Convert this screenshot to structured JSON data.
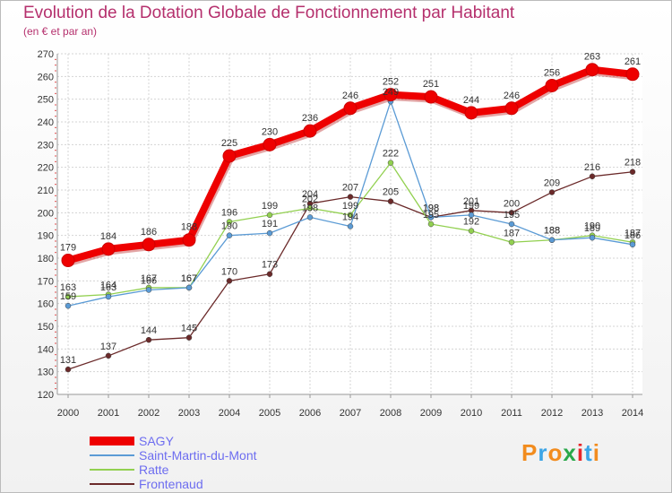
{
  "title": "Evolution de la Dotation Globale de Fonctionnement par Habitant",
  "subtitle": "(en € et par an)",
  "logo": {
    "text": "Proxiti",
    "colors": [
      "#f28c1e",
      "#3ca5e6",
      "#f28c1e",
      "#2aa84a",
      "#e8262a",
      "#3ca5e6",
      "#f28c1e"
    ]
  },
  "chart_data": {
    "type": "line",
    "title": "Evolution de la Dotation Globale de Fonctionnement par Habitant",
    "subtitle": "(en € et par an)",
    "x": [
      "2000",
      "2001",
      "2002",
      "2003",
      "2004",
      "2005",
      "2006",
      "2007",
      "2008",
      "2009",
      "2010",
      "2011",
      "2012",
      "2013",
      "2014"
    ],
    "ylim": [
      120,
      270
    ],
    "yticks": [
      120,
      130,
      140,
      150,
      160,
      170,
      180,
      190,
      200,
      210,
      220,
      230,
      240,
      250,
      260,
      270
    ],
    "grid": true,
    "series": [
      {
        "name": "SAGY",
        "color": "#ee0000",
        "values": [
          179,
          184,
          186,
          188,
          225,
          230,
          236,
          246,
          252,
          251,
          244,
          246,
          256,
          263,
          261
        ]
      },
      {
        "name": "Saint-Martin-du-Mont",
        "color": "#5b9bd5",
        "values": [
          159,
          163,
          166,
          167,
          190,
          191,
          198,
          194,
          249,
          198,
          199,
          195,
          188,
          189,
          186
        ]
      },
      {
        "name": "Ratte",
        "color": "#92d050",
        "values": [
          163,
          164,
          167,
          167,
          196,
          199,
          202,
          199,
          222,
          195,
          192,
          187,
          188,
          190,
          187
        ]
      },
      {
        "name": "Frontenaud",
        "color": "#6b2a2a",
        "values": [
          131,
          137,
          144,
          145,
          170,
          173,
          204,
          207,
          205,
          198,
          201,
          200,
          209,
          216,
          218
        ]
      }
    ]
  }
}
